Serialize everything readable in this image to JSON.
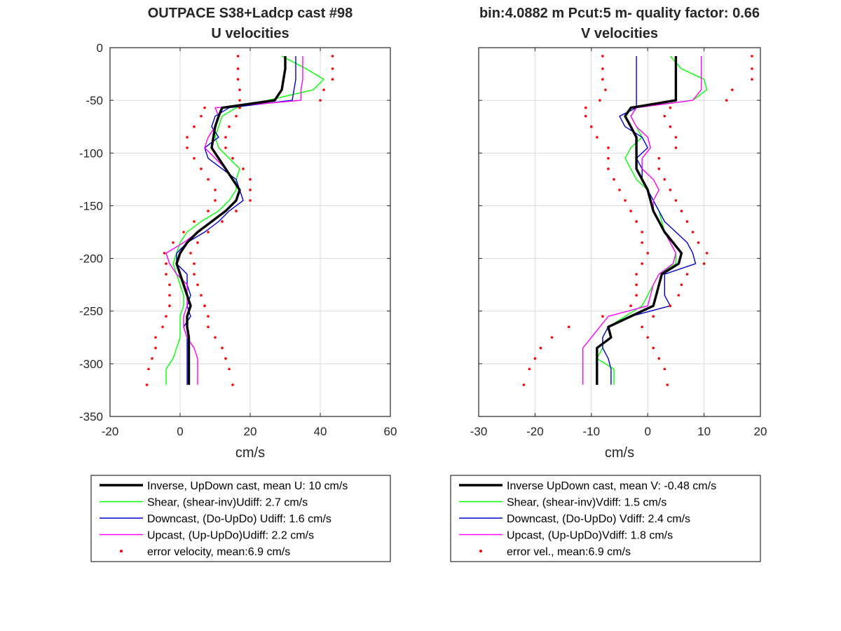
{
  "suptitle_left": "OUTPACE S38+Ladcp cast #98",
  "suptitle_right": "bin:4.0882 m  Pcut:5 m- quality factor:  0.66",
  "colors": {
    "inverse": "#000000",
    "shear": "#00ff00",
    "downcast": "#0000cc",
    "upcast": "#ff00ff",
    "error": "#ff0000",
    "grid": "#d9d9d9"
  },
  "chart_data": [
    {
      "type": "line",
      "title": "U velocities",
      "xlabel": "cm/s",
      "ylabel": "",
      "xlim": [
        -20,
        60
      ],
      "ylim": [
        -350,
        0
      ],
      "xticks": [
        -20,
        0,
        20,
        40,
        60
      ],
      "yticks": [
        0,
        -50,
        -100,
        -150,
        -200,
        -250,
        -300,
        -350
      ],
      "xtick_labels": [
        "-20",
        "0",
        "20",
        "40",
        "60"
      ],
      "ytick_labels": [
        "0",
        "-50",
        "-100",
        "-150",
        "-200",
        "-250",
        "-300",
        "-350"
      ],
      "grid": true,
      "legend_position": "below",
      "depth": [
        -8,
        -20,
        -30,
        -40,
        -50,
        -57,
        -65,
        -75,
        -85,
        -95,
        -105,
        -115,
        -125,
        -135,
        -145,
        -155,
        -165,
        -175,
        -185,
        -195,
        -205,
        -215,
        -225,
        -235,
        -245,
        -255,
        -265,
        -275,
        -285,
        -295,
        -305,
        -320
      ],
      "series": [
        {
          "name": "Inverse, UpDown cast, mean U:  10 cm/s",
          "key": "inverse",
          "x": [
            30,
            30,
            29.5,
            29,
            27,
            12,
            11,
            10,
            9.5,
            9,
            11,
            13,
            15,
            17,
            16,
            13,
            9,
            5,
            2,
            0,
            -1,
            0,
            1,
            2,
            3,
            2,
            2,
            2.5,
            2.5,
            2.5,
            2.5,
            2.5
          ]
        },
        {
          "name": "Shear, (shear-inv)Udiff:  2.7 cm/s",
          "key": "shear",
          "x": [
            29,
            36,
            41,
            38,
            25,
            16,
            12,
            11,
            10,
            11,
            14,
            17,
            16,
            16,
            14,
            11,
            6,
            2,
            0,
            -1,
            -2,
            -1,
            0,
            1,
            1,
            0,
            0,
            0,
            -1,
            -2,
            -4,
            -4
          ]
        },
        {
          "name": "Downcast, (Do-UpDo) Udiff:  1.6 cm/s",
          "key": "downcast",
          "x": [
            33,
            33,
            33,
            32.5,
            32,
            14,
            10,
            9,
            11,
            7,
            8,
            12,
            16,
            17,
            18,
            14,
            11,
            7,
            2,
            -1,
            -1,
            2,
            2,
            3,
            2,
            3,
            1,
            2,
            2,
            2,
            2,
            2
          ]
        },
        {
          "name": "Upcast, (Up-UpDo)Udiff:  2.2 cm/s",
          "key": "upcast",
          "x": [
            35,
            35,
            35,
            34.5,
            34.5,
            10,
            11,
            10,
            8,
            7,
            10,
            13,
            15,
            17,
            16,
            13,
            9,
            5,
            1,
            -4,
            -3,
            -1,
            2,
            2,
            2,
            1,
            1,
            2,
            4,
            5,
            5,
            5
          ]
        },
        {
          "name": "error velocity, mean:6.9 cm/s",
          "key": "error",
          "kind": "error_band",
          "lower": [
            16.5,
            16.5,
            16.5,
            17,
            17,
            7,
            6,
            4,
            2,
            2,
            4,
            6,
            8,
            10,
            10,
            8,
            4,
            1,
            -2,
            -4.5,
            -4,
            -4,
            -3,
            -3,
            -3,
            -4,
            -5,
            -7,
            -7,
            -8,
            -9,
            -9.5
          ],
          "upper": [
            43.5,
            43.5,
            43.5,
            41,
            40,
            17,
            16,
            14,
            13,
            13,
            15,
            18,
            20,
            20,
            20,
            16,
            12,
            8,
            5,
            3,
            4,
            4,
            5,
            6,
            7,
            8,
            8,
            10,
            12,
            13,
            14,
            15
          ]
        }
      ]
    },
    {
      "type": "line",
      "title": "V velocities",
      "xlabel": "cm/s",
      "ylabel": "",
      "xlim": [
        -30,
        20
      ],
      "ylim": [
        -350,
        0
      ],
      "xticks": [
        -30,
        -20,
        -10,
        0,
        10,
        20
      ],
      "yticks": [
        0,
        -50,
        -100,
        -150,
        -200,
        -250,
        -300,
        -350
      ],
      "xtick_labels": [
        "-30",
        "-20",
        "-10",
        "0",
        "10",
        "20"
      ],
      "grid": true,
      "legend_position": "below",
      "depth": [
        -8,
        -20,
        -30,
        -40,
        -50,
        -57,
        -65,
        -75,
        -85,
        -95,
        -105,
        -115,
        -125,
        -135,
        -145,
        -155,
        -165,
        -175,
        -185,
        -195,
        -205,
        -215,
        -225,
        -235,
        -245,
        -255,
        -265,
        -275,
        -285,
        -295,
        -305,
        -320
      ],
      "series": [
        {
          "name": "Inverse UpDown cast, mean V:  -0.48 cm/s",
          "key": "inverse",
          "x": [
            5,
            5,
            5,
            5,
            5,
            -3,
            -4,
            -3,
            -2,
            -2,
            -2,
            -2,
            -1,
            0,
            0.5,
            1,
            2,
            3,
            4.5,
            6,
            5.5,
            2.5,
            2,
            1.5,
            1,
            -3,
            -7,
            -6.5,
            -9,
            -9,
            -9,
            -9
          ]
        },
        {
          "name": "Shear, (shear-inv)Vdiff:  1.5 cm/s",
          "key": "shear",
          "x": [
            4,
            6,
            10,
            10.5,
            8,
            -2,
            -3,
            -2,
            -1,
            -3,
            -4,
            -3,
            -2,
            0,
            1,
            2,
            2.5,
            3,
            4,
            5,
            5,
            2,
            1,
            0,
            -1,
            -4,
            -7,
            -8,
            -8,
            -9,
            -6,
            -6
          ]
        },
        {
          "name": "Downcast, (Do-UpDo) Vdiff:  2.4 cm/s",
          "key": "downcast",
          "x": [
            -2,
            -2,
            -2,
            -2,
            -2,
            -2,
            -5,
            -4,
            -1,
            0,
            -2,
            -1,
            -1,
            0,
            1,
            2,
            3,
            5,
            7,
            8,
            8.5,
            3,
            3,
            3,
            4,
            -3,
            -7,
            -8,
            -8,
            -7,
            -6.5,
            -6.5
          ]
        },
        {
          "name": "Upcast, (Up-UpDo)Vdiff:  1.8 cm/s",
          "key": "upcast",
          "x": [
            9.5,
            9.5,
            9.5,
            9.5,
            8,
            -2,
            -3,
            -2,
            0,
            0.5,
            -1,
            -1,
            1,
            2,
            1,
            1,
            2,
            3,
            4,
            5,
            4.5,
            2,
            1,
            0.5,
            0,
            -7,
            -8.5,
            -10,
            -11.5,
            -11.5,
            -11.5,
            -11.5
          ]
        },
        {
          "name": "error vel., mean:6.9 cm/s",
          "key": "error",
          "kind": "error_band",
          "lower": [
            -8,
            -8,
            -8,
            -7.5,
            -8.5,
            -11,
            -11,
            -10,
            -9,
            -7,
            -7,
            -7,
            -6,
            -5,
            -4,
            -3,
            -2,
            -1,
            -1,
            0,
            -1,
            -2,
            -2,
            -2,
            -3,
            -8,
            -14,
            -17,
            -19,
            -20,
            -21,
            -22
          ]
        },
        {
          "name": "error vel.",
          "key": "error_upper",
          "kind": "band_only",
          "upper": [
            18.5,
            18.5,
            18.5,
            15,
            14,
            4,
            3,
            4,
            5,
            5,
            2,
            2,
            3,
            4,
            5,
            6,
            7,
            8,
            9,
            10.5,
            10,
            7,
            6,
            5.5,
            4,
            1,
            -1,
            0,
            1,
            2,
            3,
            3.5
          ]
        }
      ]
    }
  ],
  "legends": [
    {
      "items": [
        {
          "key": "inverse",
          "label": "Inverse, UpDown cast, mean U:  10 cm/s"
        },
        {
          "key": "shear",
          "label": "Shear, (shear-inv)Udiff:  2.7 cm/s"
        },
        {
          "key": "downcast",
          "label": "Downcast, (Do-UpDo) Udiff:  1.6 cm/s"
        },
        {
          "key": "upcast",
          "label": "Upcast, (Up-UpDo)Udiff:  2.2 cm/s"
        },
        {
          "key": "error",
          "label": "error velocity, mean:6.9 cm/s"
        }
      ]
    },
    {
      "items": [
        {
          "key": "inverse",
          "label": "Inverse UpDown cast, mean V:  -0.48 cm/s"
        },
        {
          "key": "shear",
          "label": "Shear, (shear-inv)Vdiff:  1.5 cm/s"
        },
        {
          "key": "downcast",
          "label": "Downcast, (Do-UpDo) Vdiff:  2.4 cm/s"
        },
        {
          "key": "upcast",
          "label": "Upcast, (Up-UpDo)Vdiff:  1.8 cm/s"
        },
        {
          "key": "error",
          "label": "error vel., mean:6.9 cm/s"
        }
      ]
    }
  ]
}
